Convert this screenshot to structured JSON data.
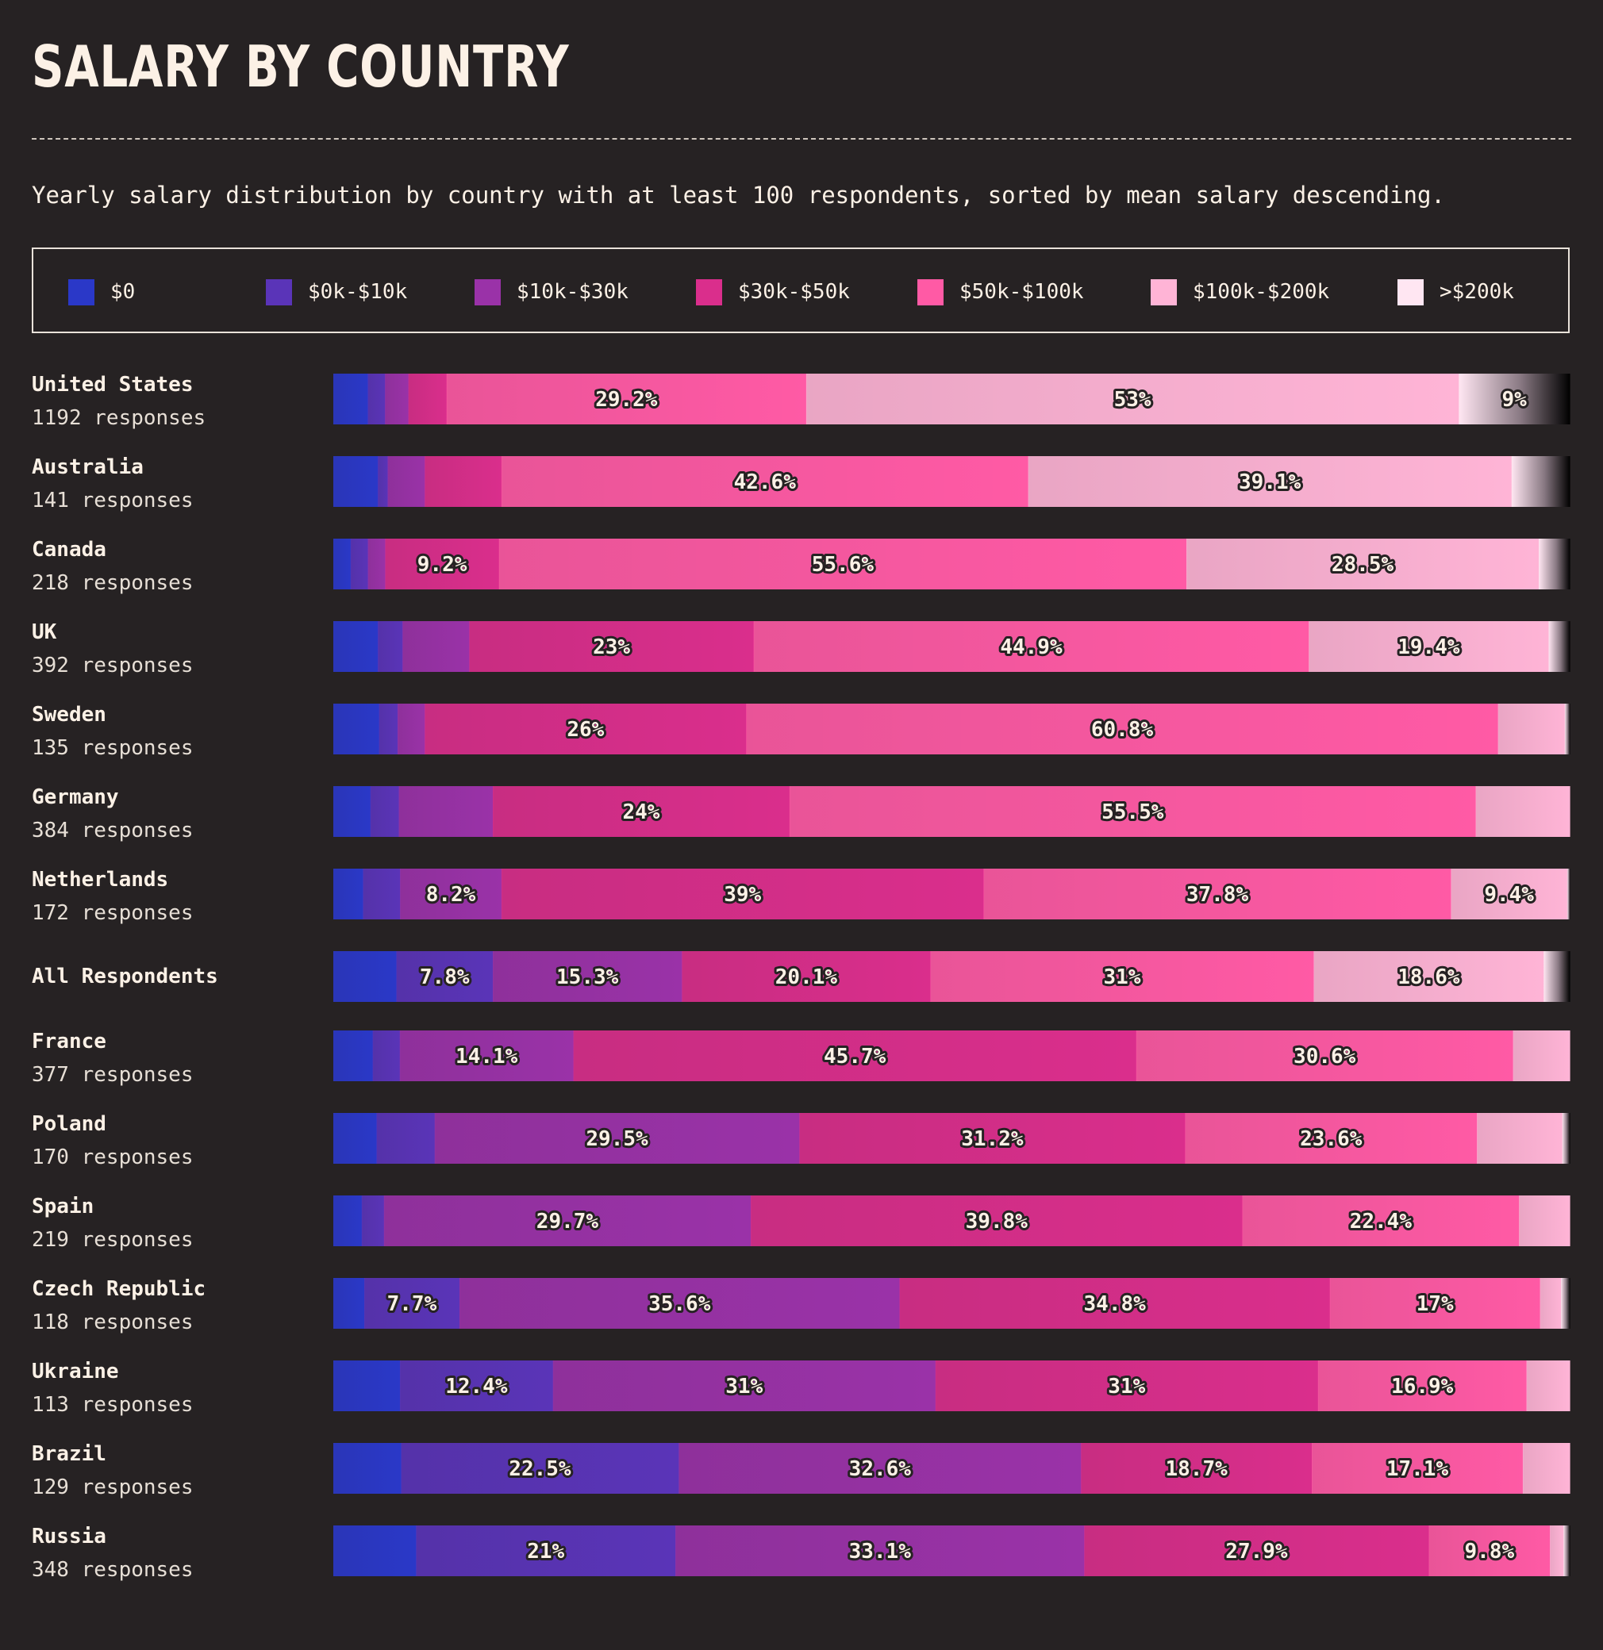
{
  "title": "SALARY BY COUNTRY",
  "subtitle": "Yearly salary distribution by country with at least 100 respondents, sorted by mean salary descending.",
  "legend": [
    {
      "label": "$0",
      "color": "#2a38c8"
    },
    {
      "label": "$0k-$10k",
      "color": "#5a34b8"
    },
    {
      "label": "$10k-$30k",
      "color": "#9a32a8"
    },
    {
      "label": "$30k-$50k",
      "color": "#da2e8c"
    },
    {
      "label": "$50k-$100k",
      "color": "#ff5aa5"
    },
    {
      "label": "$100k-$200k",
      "color": "#ffb4d6"
    },
    {
      "label": ">$200k",
      "color": "#ffe6f2"
    }
  ],
  "chart_data": {
    "type": "bar",
    "orientation": "horizontal",
    "stacked": true,
    "normalized": true,
    "unit": "%",
    "categories": [
      "$0",
      "$0k-$10k",
      "$10k-$30k",
      "$30k-$50k",
      "$50k-$100k",
      "$100k-$200k",
      ">$200k"
    ],
    "rows": [
      {
        "label": "United States",
        "responses": "1192 responses",
        "values": [
          2.8,
          1.4,
          1.9,
          3.1,
          29.2,
          53,
          9
        ],
        "labels": [
          "",
          "",
          "",
          "",
          "29.2%",
          "53%",
          "9%"
        ]
      },
      {
        "label": "Australia",
        "responses": "141 responses",
        "values": [
          3.6,
          0.8,
          3,
          6.2,
          42.6,
          39.1,
          4.7
        ],
        "labels": [
          "",
          "",
          "",
          "",
          "42.6%",
          "39.1%",
          ""
        ]
      },
      {
        "label": "Canada",
        "responses": "218 responses",
        "values": [
          1.4,
          1.4,
          1.4,
          9.2,
          55.6,
          28.5,
          2.5
        ],
        "labels": [
          "",
          "",
          "",
          "9.2%",
          "55.6%",
          "28.5%",
          ""
        ]
      },
      {
        "label": "UK",
        "responses": "392 responses",
        "values": [
          3.6,
          2,
          5.4,
          23,
          44.9,
          19.4,
          1.7
        ],
        "labels": [
          "",
          "",
          "",
          "23%",
          "44.9%",
          "19.4%",
          ""
        ]
      },
      {
        "label": "Sweden",
        "responses": "135 responses",
        "values": [
          3.7,
          1.5,
          2.2,
          26,
          60.8,
          5.4,
          0.4
        ],
        "labels": [
          "",
          "",
          "",
          "26%",
          "60.8%",
          "",
          ""
        ]
      },
      {
        "label": "Germany",
        "responses": "384 responses",
        "values": [
          3,
          2.3,
          7.6,
          24,
          55.5,
          7.6,
          0
        ],
        "labels": [
          "",
          "",
          "",
          "24%",
          "55.5%",
          "",
          ""
        ]
      },
      {
        "label": "Netherlands",
        "responses": "172 responses",
        "values": [
          2.4,
          3,
          8.2,
          39,
          37.8,
          9.4,
          0.2
        ],
        "labels": [
          "",
          "",
          "8.2%",
          "39%",
          "37.8%",
          "9.4%",
          ""
        ]
      },
      {
        "label": "All Respondents",
        "responses": "",
        "values": [
          5.1,
          7.8,
          15.3,
          20.1,
          31,
          18.6,
          2.1
        ],
        "labels": [
          "",
          "7.8%",
          "15.3%",
          "20.1%",
          "31%",
          "18.6%",
          ""
        ]
      },
      {
        "label": "France",
        "responses": "377 responses",
        "values": [
          3.2,
          2.2,
          14.1,
          45.7,
          30.6,
          4.6,
          0
        ],
        "labels": [
          "",
          "",
          "14.1%",
          "45.7%",
          "30.6%",
          "",
          ""
        ]
      },
      {
        "label": "Poland",
        "responses": "170 responses",
        "values": [
          3.5,
          4.7,
          29.5,
          31.2,
          23.6,
          6.9,
          0.6
        ],
        "labels": [
          "",
          "",
          "29.5%",
          "31.2%",
          "23.6%",
          "",
          ""
        ]
      },
      {
        "label": "Spain",
        "responses": "219 responses",
        "values": [
          2.3,
          1.8,
          29.7,
          39.8,
          22.4,
          4.1,
          0
        ],
        "labels": [
          "",
          "",
          "29.7%",
          "39.8%",
          "22.4%",
          "",
          ""
        ]
      },
      {
        "label": "Czech Republic",
        "responses": "118 responses",
        "values": [
          2.5,
          7.7,
          35.6,
          34.8,
          17,
          1.7,
          0.7
        ],
        "labels": [
          "",
          "7.7%",
          "35.6%",
          "34.8%",
          "17%",
          "",
          ""
        ]
      },
      {
        "label": "Ukraine",
        "responses": "113 responses",
        "values": [
          5.4,
          12.4,
          31,
          31,
          16.9,
          3.5,
          0
        ],
        "labels": [
          "",
          "12.4%",
          "31%",
          "31%",
          "16.9%",
          "",
          ""
        ]
      },
      {
        "label": "Brazil",
        "responses": "129 responses",
        "values": [
          5.5,
          22.5,
          32.6,
          18.7,
          17.1,
          3.8,
          0
        ],
        "labels": [
          "",
          "22.5%",
          "32.6%",
          "18.7%",
          "17.1%",
          "",
          ""
        ]
      },
      {
        "label": "Russia",
        "responses": "348 responses",
        "values": [
          6.7,
          21,
          33.1,
          27.9,
          9.8,
          1.1,
          0.5
        ],
        "labels": [
          "",
          "21%",
          "33.1%",
          "27.9%",
          "9.8%",
          "",
          ""
        ]
      }
    ]
  }
}
